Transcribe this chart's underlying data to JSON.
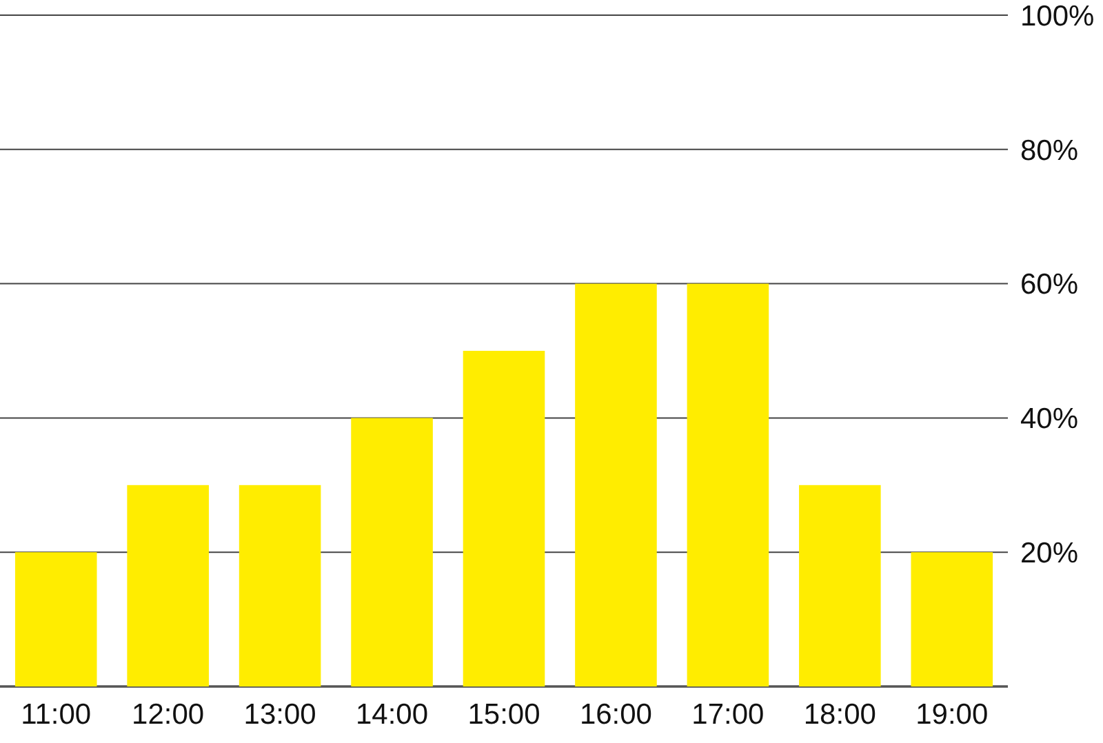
{
  "chart_data": {
    "type": "bar",
    "categories": [
      "11:00",
      "12:00",
      "13:00",
      "14:00",
      "15:00",
      "16:00",
      "17:00",
      "18:00",
      "19:00"
    ],
    "values": [
      20,
      30,
      30,
      40,
      50,
      60,
      60,
      30,
      20
    ],
    "color": "#ffed00",
    "ylim": [
      0,
      100
    ],
    "yticks": [
      {
        "value": 0,
        "label": null
      },
      {
        "value": 20,
        "label": "20%"
      },
      {
        "value": 40,
        "label": "40%"
      },
      {
        "value": 60,
        "label": "60%"
      },
      {
        "value": 80,
        "label": "80%"
      },
      {
        "value": 100,
        "label": "100%"
      }
    ],
    "grid": "y"
  }
}
